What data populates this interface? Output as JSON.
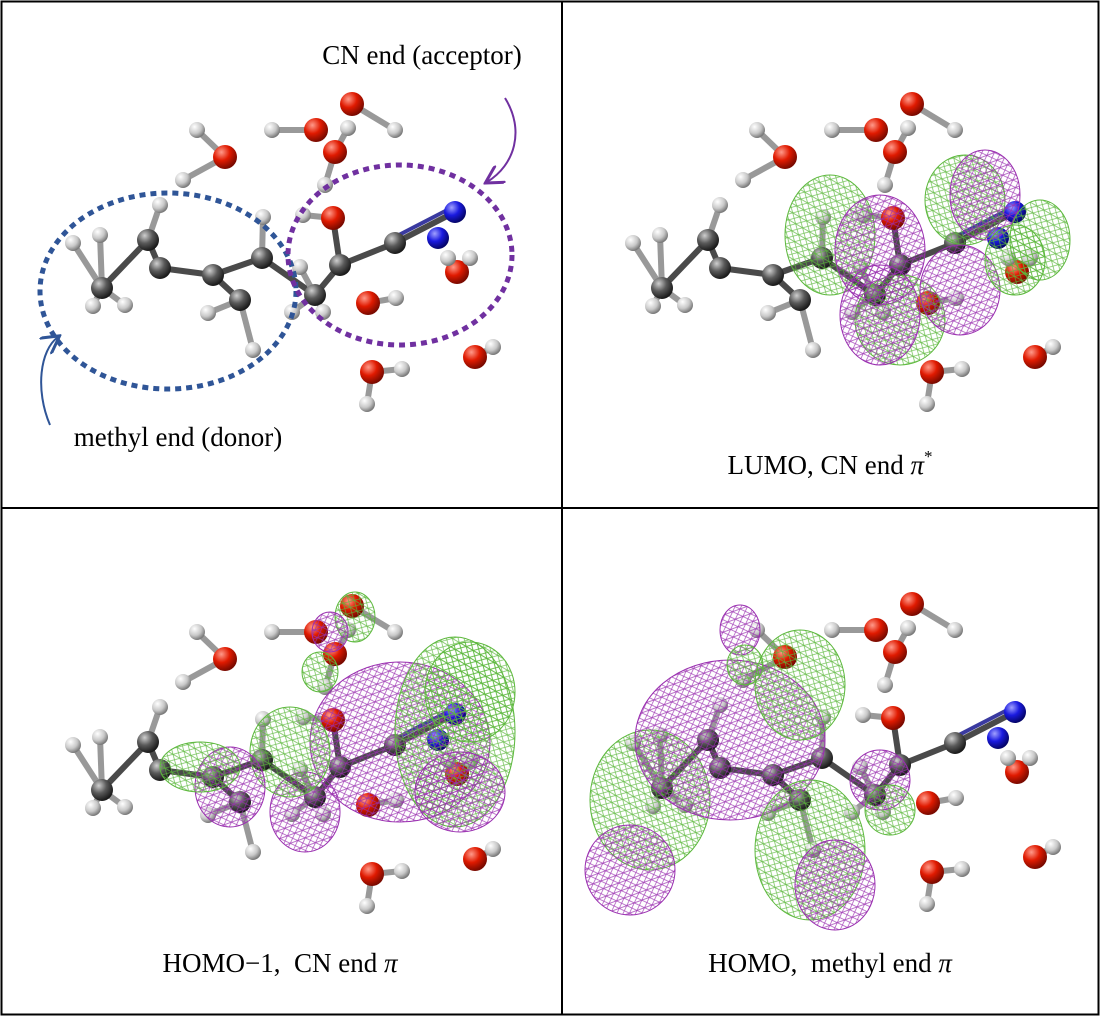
{
  "panels": [
    {
      "annotations": [
        "CN end (acceptor)",
        "methyl end (donor)"
      ]
    },
    {
      "caption": {
        "text": "LUMO, CN end ",
        "symbol": "π",
        "superscript": "*"
      }
    },
    {
      "caption": {
        "text": "HOMO−1,  CN end ",
        "symbol": "π"
      }
    },
    {
      "caption": {
        "text": "HOMO,  methyl end ",
        "symbol": "π"
      }
    }
  ]
}
